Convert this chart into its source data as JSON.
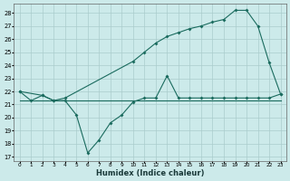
{
  "xlabel": "Humidex (Indice chaleur)",
  "bg_color": "#cceaea",
  "grid_color": "#aacccc",
  "line_color": "#1a6b5e",
  "xlim": [
    -0.5,
    23.5
  ],
  "ylim": [
    16.7,
    28.7
  ],
  "yticks": [
    17,
    18,
    19,
    20,
    21,
    22,
    23,
    24,
    25,
    26,
    27,
    28
  ],
  "xticks": [
    0,
    1,
    2,
    3,
    4,
    5,
    6,
    7,
    8,
    9,
    10,
    11,
    12,
    13,
    14,
    15,
    16,
    17,
    18,
    19,
    20,
    21,
    22,
    23
  ],
  "line1_x": [
    0,
    1,
    2,
    3,
    4,
    5,
    6,
    7,
    8,
    9,
    10,
    11,
    12,
    13,
    14,
    15,
    16,
    17,
    18,
    19,
    20,
    21,
    22,
    23
  ],
  "line1_y": [
    21.3,
    21.3,
    21.3,
    21.3,
    21.3,
    21.3,
    21.3,
    21.3,
    21.3,
    21.3,
    21.3,
    21.3,
    21.3,
    21.3,
    21.3,
    21.3,
    21.3,
    21.3,
    21.3,
    21.3,
    21.3,
    21.3,
    21.3,
    21.3
  ],
  "line2_x": [
    0,
    1,
    2,
    3,
    4,
    5,
    6,
    7,
    8,
    9,
    10,
    11,
    12,
    13,
    14,
    15,
    16,
    17,
    18,
    19,
    20,
    21,
    22,
    23
  ],
  "line2_y": [
    22.0,
    21.3,
    21.7,
    21.3,
    21.3,
    20.2,
    17.3,
    18.3,
    19.6,
    20.2,
    21.2,
    21.5,
    21.5,
    23.2,
    21.5,
    21.5,
    21.5,
    21.5,
    21.5,
    21.5,
    21.5,
    21.5,
    21.5,
    21.8
  ],
  "line3_x": [
    0,
    2,
    3,
    4,
    10,
    11,
    12,
    13,
    14,
    15,
    16,
    17,
    18,
    19,
    20,
    21,
    22,
    23
  ],
  "line3_y": [
    22.0,
    21.7,
    21.3,
    21.5,
    24.3,
    25.0,
    25.7,
    26.2,
    26.5,
    26.8,
    27.0,
    27.3,
    27.5,
    28.2,
    28.2,
    27.0,
    24.2,
    21.8
  ]
}
